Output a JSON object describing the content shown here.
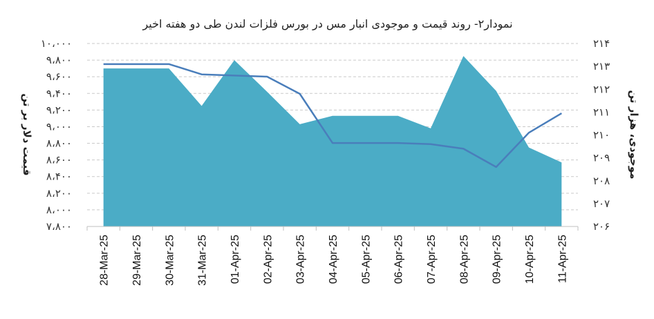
{
  "chart_data": {
    "type": "line+area",
    "title": "نمودار۲- روند قیمت و موجودی انبار مس در بورس فلزات لندن طی دو هفته اخیر",
    "categories": [
      "28-Mar-25",
      "29-Mar-25",
      "30-Mar-25",
      "31-Mar-25",
      "01-Apr-25",
      "02-Apr-25",
      "03-Apr-25",
      "04-Apr-25",
      "05-Apr-25",
      "06-Apr-25",
      "07-Apr-25",
      "08-Apr-25",
      "09-Apr-25",
      "10-Apr-25",
      "11-Apr-25"
    ],
    "left_axis": {
      "label": "قیمت دلار بر تن",
      "min": 7800,
      "max": 10000,
      "tick_labels": [
        "۷،۸۰۰",
        "۸،۰۰۰",
        "۸،۲۰۰",
        "۸،۴۰۰",
        "۸،۶۰۰",
        "۸،۸۰۰",
        "۹،۰۰۰",
        "۹،۲۰۰",
        "۹،۴۰۰",
        "۹،۶۰۰",
        "۹،۸۰۰",
        "۱۰،۰۰۰"
      ]
    },
    "right_axis": {
      "label": "موجودی، هزار تن",
      "min": 206,
      "max": 214,
      "tick_labels": [
        "۲۰۶",
        "۲۰۷",
        "۲۰۸",
        "۲۰۹",
        "۲۱۰",
        "۲۱۱",
        "۲۱۲",
        "۲۱۳",
        "۲۱۴"
      ]
    },
    "series": [
      {
        "axis": "left",
        "kind": "area",
        "color": "#4bacc6",
        "values": [
          9700,
          9700,
          9700,
          9250,
          9800,
          9420,
          9030,
          9130,
          9130,
          9130,
          8980,
          9850,
          9430,
          8750,
          8570
        ]
      },
      {
        "axis": "right",
        "kind": "line",
        "color": "#4a7ebb",
        "values": [
          213.1,
          213.1,
          213.1,
          212.65,
          212.6,
          212.55,
          211.8,
          209.65,
          209.65,
          209.65,
          209.6,
          209.4,
          208.6,
          210.1,
          210.95
        ]
      }
    ],
    "grid": "horizontal-dashed"
  }
}
